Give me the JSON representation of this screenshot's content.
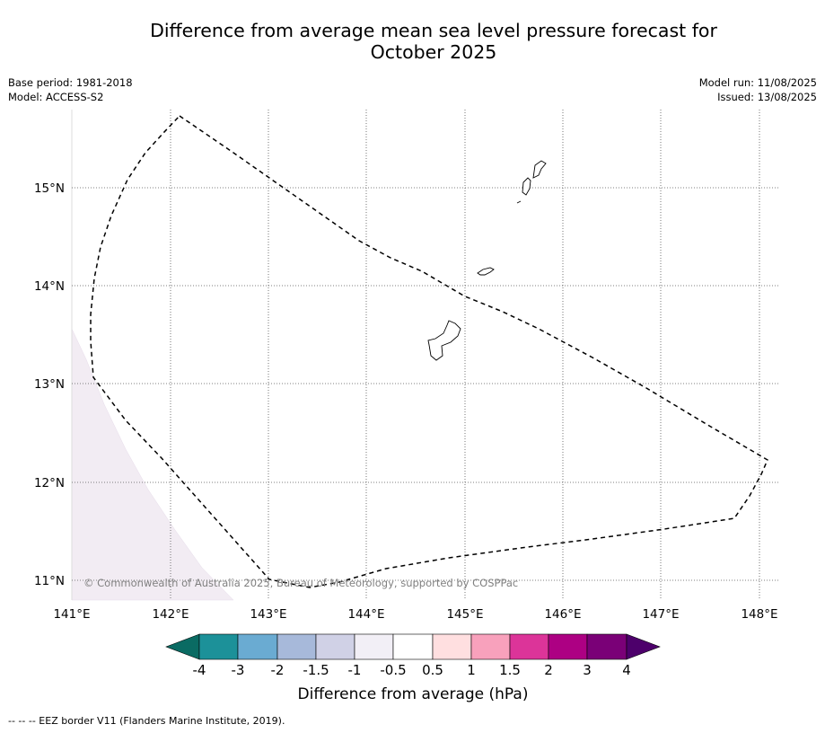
{
  "header": {
    "title_line1": "Difference from average mean sea level pressure forecast for",
    "title_line2": "October 2025",
    "base_period": "Base period: 1981-2018",
    "model": "Model: ACCESS-S2",
    "model_run": "Model run: 11/08/2025",
    "issued": "Issued: 13/08/2025"
  },
  "map": {
    "lat_labels": [
      "15°N",
      "14°N",
      "13°N",
      "12°N",
      "11°N"
    ],
    "lon_labels": [
      "141°E",
      "142°E",
      "143°E",
      "144°E",
      "145°E",
      "146°E",
      "147°E",
      "148°E"
    ],
    "copyright": "© Commonwealth of Australia 2025, Bureau of Meteorology, supported by COSPPac",
    "anomaly_fill_color": "#f2ecf3",
    "eez_border_style": "dashed"
  },
  "colorbar": {
    "title": "Difference from average (hPa)",
    "tick_labels": [
      "-4",
      "-3",
      "-2",
      "-1.5",
      "-1",
      "-0.5",
      "0.5",
      "1",
      "1.5",
      "2",
      "3",
      "4"
    ],
    "colors": [
      "#0a6b63",
      "#1c9199",
      "#6aabd2",
      "#a7b9da",
      "#d0d1e6",
      "#f2eff6",
      "#ffffff",
      "#ffdfe0",
      "#f8a1bc",
      "#dc3499",
      "#ad0083",
      "#7a0077",
      "#4d006b"
    ]
  },
  "footer": {
    "note": "--  --  -- EEZ border V11 (Flanders Marine Institute, 2019)."
  }
}
